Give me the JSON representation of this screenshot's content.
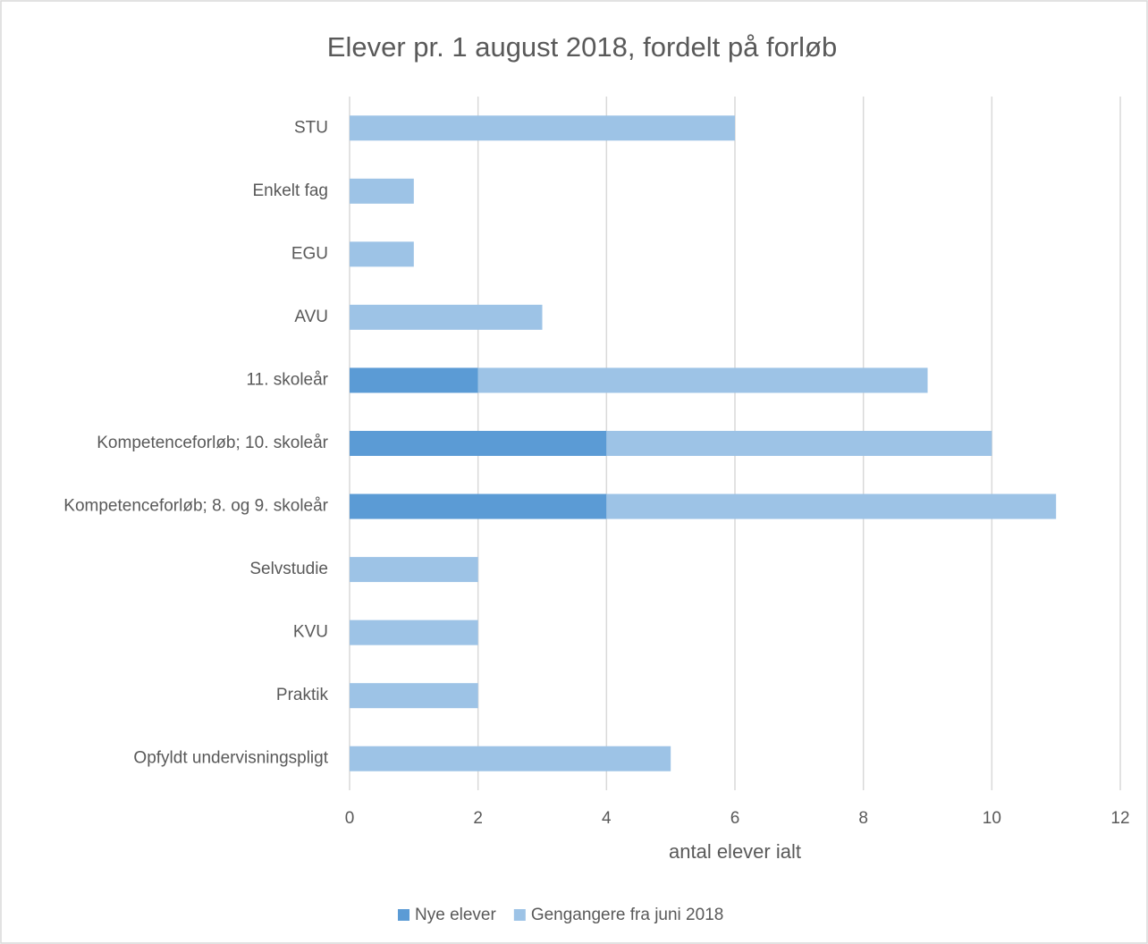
{
  "chart_data": {
    "type": "stacked_bar_horizontal",
    "title": "Elever pr. 1 august 2018, fordelt på forløb",
    "x_label": "antal elever ialt",
    "categories": [
      "STU",
      "Enkelt fag",
      "EGU",
      "AVU",
      "11. skoleår",
      "Kompetenceforløb; 10. skoleår",
      "Kompetenceforløb; 8. og 9. skoleår",
      "Selvstudie",
      "KVU",
      "Praktik",
      "Opfyldt undervisningspligt"
    ],
    "series": [
      {
        "name": "Nye elever",
        "color": "#5b9bd5",
        "values": [
          0,
          0,
          0,
          0,
          2,
          4,
          4,
          0,
          0,
          0,
          0
        ]
      },
      {
        "name": "Gengangere fra juni 2018",
        "color": "#9dc3e6",
        "values": [
          6,
          1,
          1,
          3,
          7,
          6,
          7,
          2,
          2,
          2,
          5
        ]
      }
    ],
    "xlim": [
      0,
      12
    ],
    "xticks": [
      0,
      2,
      4,
      6,
      8,
      10,
      12
    ],
    "grid": true,
    "legend": "bottom"
  }
}
